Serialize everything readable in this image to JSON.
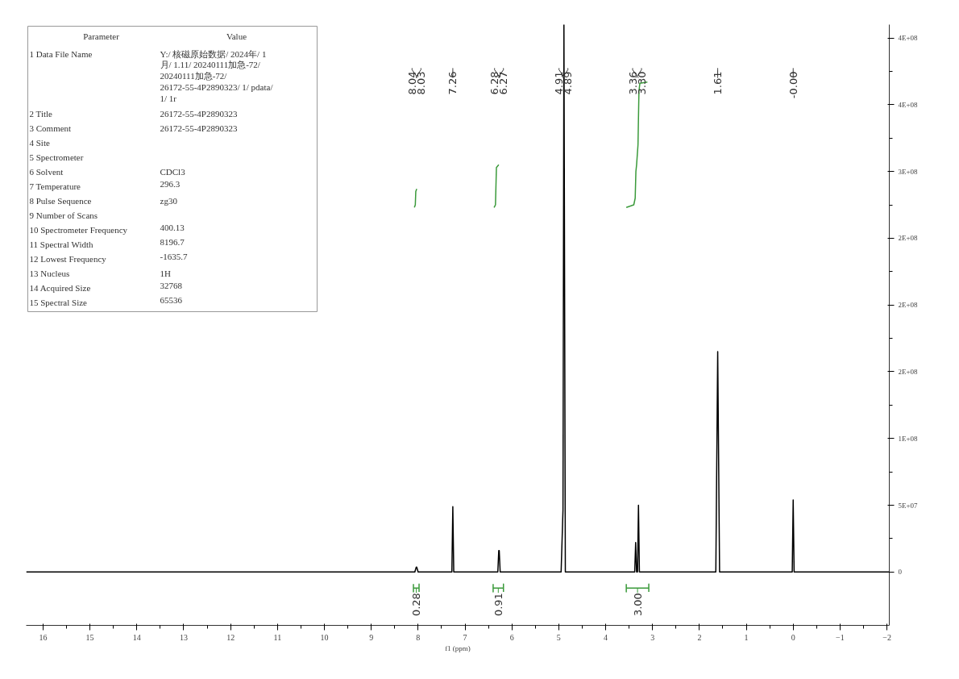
{
  "chart_data": {
    "type": "line",
    "xlabel": "f1 (ppm)",
    "xlim": [
      16.36,
      -2.05
    ],
    "xticks": [
      16,
      15,
      14,
      13,
      12,
      11,
      10,
      9,
      8,
      7,
      6,
      5,
      4,
      3,
      2,
      1,
      0,
      {
        "value": -1,
        "label": "−1"
      },
      {
        "value": -2,
        "label": "−2"
      }
    ],
    "ylim": [
      -40000000,
      410000000
    ],
    "yticks": [
      0,
      {
        "value": 50000000,
        "label": "5E+07"
      },
      {
        "value": 100000000,
        "label": "1E+08"
      },
      {
        "value": 150000000,
        "label": "2E+08"
      },
      {
        "value": 200000000,
        "label": "2E+08"
      },
      {
        "value": 250000000,
        "label": "2E+08"
      },
      {
        "value": 300000000,
        "label": "3E+08"
      },
      {
        "value": 350000000,
        "label": "4E+08"
      },
      {
        "value": 400000000,
        "label": "4E+08"
      }
    ],
    "grid": false,
    "series": [
      {
        "color": "#000000",
        "x": [
          16.36,
          8.07,
          8.04,
          8.03,
          8.0,
          7.28,
          7.26,
          7.24,
          6.3,
          6.28,
          6.27,
          6.25,
          4.95,
          4.91,
          4.89,
          4.86,
          3.38,
          3.36,
          3.34,
          3.32,
          3.3,
          3.28,
          1.65,
          1.61,
          1.57,
          0.02,
          0.0,
          -0.02,
          -2.05
        ],
        "values": [
          0,
          0,
          3600000,
          3600000,
          0,
          0,
          49000000,
          0,
          0,
          16000000,
          16000000,
          0,
          0,
          46500000,
          410000000,
          0,
          0,
          22000000,
          0,
          0,
          50000000,
          0,
          0,
          165000000,
          0,
          0,
          54000000,
          0,
          0
        ]
      },
      {
        "color": "#3a9a3a",
        "x": [
          8.08,
          8.06,
          8.05,
          8.03
        ],
        "values": [
          273000000,
          275000000,
          285000000,
          287000000
        ]
      },
      {
        "color": "#3a9a3a",
        "x": [
          6.38,
          6.35,
          6.33,
          6.28
        ],
        "values": [
          273000000,
          275000000,
          303000000,
          305000000
        ]
      },
      {
        "color": "#3a9a3a",
        "x": [
          3.56,
          3.4,
          3.37,
          3.355,
          3.34,
          3.31,
          3.29,
          3.27,
          3.11
        ],
        "values": [
          273000000,
          275000000,
          280000000,
          300000000,
          305000000,
          320000000,
          360000000,
          366000000,
          367000000
        ]
      },
      {
        "color": "#3a9a3a",
        "x": [
          8.1,
          8.1,
          8.1,
          8.04,
          7.98,
          7.98,
          7.98
        ],
        "values": [
          -9000000,
          -15000000,
          -12000000,
          -12000000,
          -12000000,
          -9000000,
          -15000000
        ]
      },
      {
        "color": "#3a9a3a",
        "x": [
          6.4,
          6.4,
          6.4,
          6.29,
          6.18,
          6.18,
          6.18
        ],
        "values": [
          -9000000,
          -15000000,
          -12000000,
          -12000000,
          -12000000,
          -9000000,
          -15000000
        ]
      },
      {
        "color": "#3a9a3a",
        "x": [
          3.56,
          3.56,
          3.56,
          3.32,
          3.08,
          3.08,
          3.08
        ],
        "values": [
          -9000000,
          -15000000,
          -12000000,
          -12000000,
          -12000000,
          -9000000,
          -15000000
        ]
      }
    ],
    "annotations": [
      "Parameter",
      "Value",
      "1 Data File Name",
      "Y:/ 核磁原始数据/ 2024年/ 1\n月/ 1.11/ 20240111加急-72/\n20240111加急-72/\n26172-55-4P2890323/ 1/ pdata/\n1/ 1r",
      "2 Title",
      "26172-55-4P2890323",
      "3 Comment",
      "26172-55-4P2890323",
      "4 Site",
      null,
      "5 Spectrometer",
      null,
      "6 Solvent",
      "CDCl3",
      "7 Temperature",
      "296.3",
      "8 Pulse Sequence",
      "zg30",
      "9 Number of Scans",
      null,
      "10 Spectrometer Frequency",
      "400.13",
      "11 Spectral Width",
      "8196.7",
      "12 Lowest Frequency",
      "-1635.7",
      "13 Nucleus",
      "1H",
      "14 Acquired Size",
      "32768",
      "15 Spectral Size",
      "65536",
      "8.04",
      "8.03",
      "7.26",
      "6.28",
      "6.27",
      "4.91",
      "4.89",
      "3.36",
      "3.30",
      "1.61",
      "-0.00",
      {
        "text": "0.28",
        "x": 8.04,
        "y": -12000000
      },
      {
        "text": "0.91",
        "x": 6.29,
        "y": -12000000
      },
      {
        "text": "3.00",
        "x": 3.32,
        "y": -12000000
      }
    ]
  }
}
